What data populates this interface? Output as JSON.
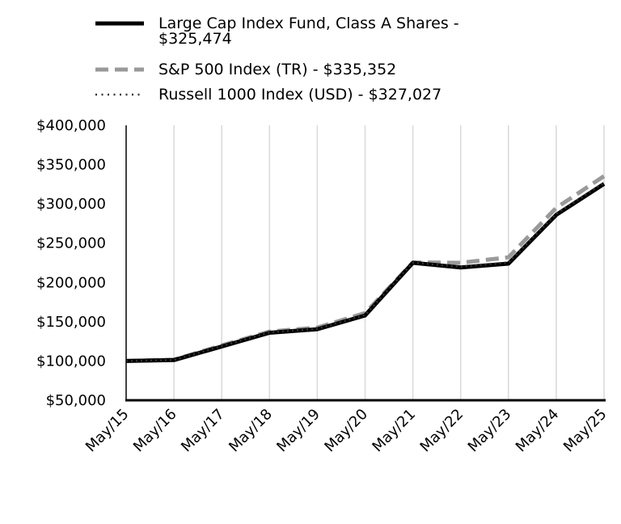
{
  "chart_data": {
    "type": "line",
    "categories": [
      "May/15",
      "May/16",
      "May/17",
      "May/18",
      "May/19",
      "May/20",
      "May/21",
      "May/22",
      "May/23",
      "May/24",
      "May/25"
    ],
    "series": [
      {
        "name": "Large Cap Index Fund, Class A Shares - $325,474",
        "name_lines": [
          "Large Cap Index Fund, Class A Shares -",
          "$325,474"
        ],
        "values": [
          100000,
          101200,
          118500,
          136000,
          140500,
          158000,
          225000,
          219000,
          224000,
          286000,
          325474
        ],
        "color": "#000000",
        "style": "solid"
      },
      {
        "name": "S&P 500 Index (TR) - $335,352",
        "name_lines": [
          "S&P 500 Index (TR) - $335,352"
        ],
        "values": [
          100000,
          101700,
          119800,
          137500,
          142500,
          161000,
          225500,
          225000,
          232000,
          295000,
          335352
        ],
        "color": "#999999",
        "style": "dashed"
      },
      {
        "name": "Russell 1000 Index (USD) - $327,027",
        "name_lines": [
          "Russell 1000 Index (USD) - $327,027"
        ],
        "values": [
          100000,
          101300,
          119000,
          136500,
          141000,
          158500,
          225200,
          220000,
          225500,
          287500,
          327027
        ],
        "color": "#333333",
        "style": "dotted"
      }
    ],
    "yticks": [
      "$50,000",
      "$100,000",
      "$150,000",
      "$200,000",
      "$250,000",
      "$300,000",
      "$350,000",
      "$400,000"
    ],
    "ylim": [
      50000,
      400000
    ],
    "grid": "vertical",
    "legend": "top"
  }
}
